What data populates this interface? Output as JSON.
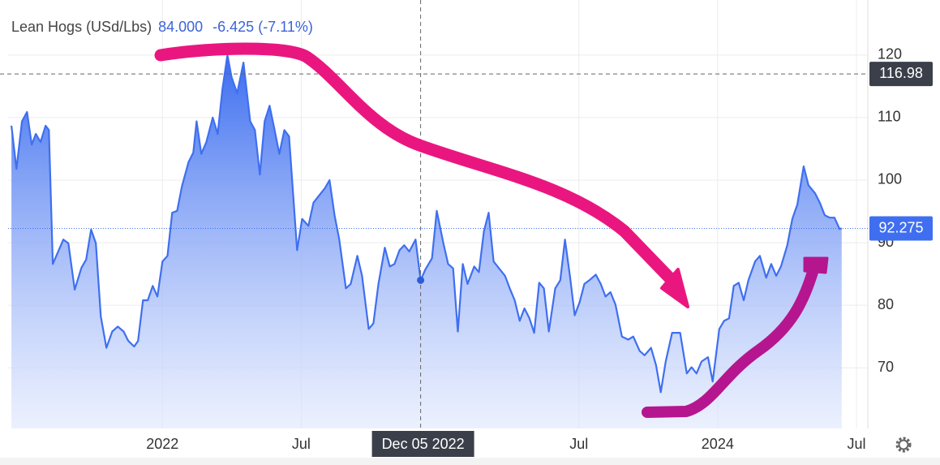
{
  "chart_data": {
    "type": "area",
    "title": "Lean Hogs (USd/Lbs)",
    "header": {
      "price": {
        "value": 84,
        "label": "84.000"
      },
      "change": "-6.425 (-7.11%)"
    },
    "crosshair": {
      "x": 2022.93,
      "x_label": "Dec 05 2022",
      "y": 116.98
    },
    "last_value": 92.275,
    "color": "#3f6ff0",
    "grid": true,
    "xlim": [
      2021.444,
      2024.541
    ],
    "ylim": [
      60.3,
      128.8
    ],
    "xticks": [
      2022,
      {
        "value": 2022.5,
        "label": "Jul"
      },
      {
        "value": 2023.5,
        "label": "Jul"
      },
      2024,
      {
        "value": 2024.5,
        "label": "Jul"
      }
    ],
    "yticks": [
      70,
      80,
      90,
      100,
      110,
      120
    ],
    "x": [
      2021.456,
      2021.474,
      2021.494,
      2021.512,
      2021.529,
      2021.544,
      2021.561,
      2021.579,
      2021.591,
      2021.605,
      2021.643,
      2021.661,
      2021.684,
      2021.708,
      2021.725,
      2021.743,
      2021.76,
      2021.778,
      2021.798,
      2021.819,
      2021.839,
      2021.86,
      2021.877,
      2021.898,
      2021.912,
      2021.93,
      2021.947,
      2021.965,
      2021.982,
      2022.0,
      2022.018,
      2022.035,
      2022.053,
      2022.07,
      2022.094,
      2022.111,
      2022.123,
      2022.14,
      2022.158,
      2022.181,
      2022.199,
      2022.216,
      2022.234,
      2022.249,
      2022.269,
      2022.292,
      2022.316,
      2022.333,
      2022.351,
      2022.368,
      2022.386,
      2022.404,
      2022.421,
      2022.439,
      2022.456,
      2022.485,
      2022.503,
      2022.526,
      2022.544,
      2022.567,
      2022.585,
      2022.602,
      2022.62,
      2022.637,
      2022.661,
      2022.678,
      2022.702,
      2022.719,
      2022.743,
      2022.76,
      2022.778,
      2022.801,
      2022.819,
      2022.836,
      2022.854,
      2022.871,
      2022.889,
      2022.912,
      2022.93,
      2022.947,
      2022.971,
      2022.988,
      2023.012,
      2023.029,
      2023.047,
      2023.064,
      2023.082,
      2023.099,
      2023.123,
      2023.14,
      2023.158,
      2023.175,
      2023.193,
      2023.216,
      2023.234,
      2023.251,
      2023.269,
      2023.287,
      2023.304,
      2023.322,
      2023.339,
      2023.357,
      2023.374,
      2023.392,
      2023.415,
      2023.433,
      2023.45,
      2023.468,
      2023.485,
      2023.503,
      2023.52,
      2023.538,
      2023.561,
      2023.579,
      2023.596,
      2023.614,
      2023.632,
      2023.655,
      2023.678,
      2023.696,
      2023.719,
      2023.737,
      2023.76,
      2023.778,
      2023.795,
      2023.813,
      2023.836,
      2023.865,
      2023.889,
      2023.906,
      2023.924,
      2023.942,
      2023.965,
      2023.982,
      2024.006,
      2024.023,
      2024.041,
      2024.058,
      2024.076,
      2024.094,
      2024.111,
      2024.135,
      2024.152,
      2024.175,
      2024.193,
      2024.211,
      2024.228,
      2024.251,
      2024.269,
      2024.287,
      2024.31,
      2024.327,
      2024.351,
      2024.368,
      2024.386,
      2024.404,
      2024.421,
      2024.439,
      2024.447
    ],
    "values": [
      108.7,
      101.8,
      109.4,
      110.9,
      105.7,
      107.4,
      106.1,
      108.7,
      108,
      86.6,
      90.5,
      89.9,
      82.5,
      86,
      87.3,
      92.1,
      89.9,
      78.2,
      73.2,
      75.8,
      76.6,
      75.8,
      74.3,
      73.4,
      74.3,
      80.8,
      80.8,
      83.1,
      81.4,
      87,
      87.9,
      94.8,
      95.1,
      99,
      102.9,
      104.4,
      109.4,
      104.2,
      106.1,
      110,
      107.4,
      114.5,
      120,
      116.5,
      113.9,
      118.8,
      109.4,
      108,
      100.9,
      109.4,
      111.9,
      108,
      104.2,
      108,
      107,
      88.8,
      93.8,
      92.7,
      96.4,
      97.7,
      98.7,
      100,
      94.4,
      90.5,
      82.7,
      83.4,
      87.9,
      84.7,
      76.2,
      77.1,
      83.4,
      89.2,
      86.2,
      86.6,
      88.8,
      89.6,
      88.6,
      90.5,
      84,
      85.7,
      87.5,
      95.1,
      89.9,
      86.6,
      85.9,
      75.8,
      86.6,
      83.4,
      86.2,
      85.3,
      91.8,
      94.8,
      87,
      85.7,
      84.7,
      82.7,
      80.8,
      77.5,
      79.5,
      77.9,
      75.6,
      83.6,
      82.7,
      75.8,
      82.7,
      84,
      90.5,
      84.7,
      78.4,
      80.5,
      83.4,
      84,
      84.9,
      83.4,
      81.4,
      82.1,
      80.1,
      75,
      74.5,
      75,
      72.7,
      72,
      73.2,
      70.4,
      66.1,
      71,
      75.6,
      75.6,
      69.1,
      70.1,
      69.1,
      71,
      71.7,
      67.8,
      76.2,
      77.5,
      77.9,
      83.1,
      83.6,
      80.8,
      84,
      87,
      87.9,
      84.4,
      86.6,
      84.7,
      86.2,
      89.6,
      93.8,
      96.1,
      102.2,
      99.2,
      97.9,
      96.4,
      94.4,
      94,
      94,
      92.2,
      92.275
    ]
  }
}
